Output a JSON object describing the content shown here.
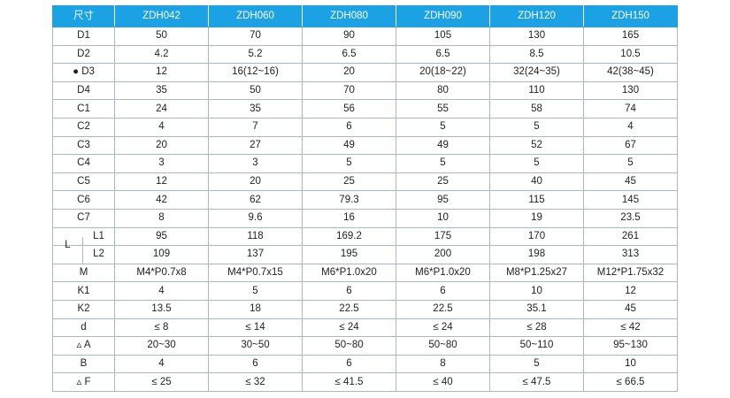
{
  "table": {
    "corner_label": "尺寸",
    "models": [
      "ZDH042",
      "ZDH060",
      "ZDH080",
      "ZDH090",
      "ZDH120",
      "ZDH150"
    ],
    "rows_top": [
      {
        "label": "D1",
        "values": [
          "50",
          "70",
          "90",
          "105",
          "130",
          "165"
        ]
      },
      {
        "label": "D2",
        "values": [
          "4.2",
          "5.2",
          "6.5",
          "6.5",
          "8.5",
          "10.5"
        ]
      },
      {
        "label": "● D3",
        "values": [
          "12",
          "16(12~16)",
          "20",
          "20(18~22)",
          "32(24~35)",
          "42(38~45)"
        ]
      },
      {
        "label": "D4",
        "values": [
          "35",
          "50",
          "70",
          "80",
          "110",
          "130"
        ]
      },
      {
        "label": "C1",
        "values": [
          "24",
          "35",
          "56",
          "55",
          "58",
          "74"
        ]
      },
      {
        "label": "C2",
        "values": [
          "4",
          "7",
          "6",
          "5",
          "5",
          "4"
        ]
      },
      {
        "label": "C3",
        "values": [
          "20",
          "27",
          "49",
          "49",
          "52",
          "67"
        ]
      },
      {
        "label": "C4",
        "values": [
          "3",
          "3",
          "5",
          "5",
          "5",
          "5"
        ]
      },
      {
        "label": "C5",
        "values": [
          "12",
          "20",
          "25",
          "25",
          "40",
          "45"
        ]
      },
      {
        "label": "C6",
        "values": [
          "42",
          "62",
          "79.3",
          "95",
          "115",
          "145"
        ]
      },
      {
        "label": "C7",
        "values": [
          "8",
          "9.6",
          "16",
          "10",
          "19",
          "23.5"
        ]
      }
    ],
    "group_L": {
      "label": "L",
      "rows": [
        {
          "label": "L1",
          "values": [
            "95",
            "118",
            "169.2",
            "175",
            "170",
            "261"
          ]
        },
        {
          "label": "L2",
          "values": [
            "109",
            "137",
            "195",
            "200",
            "198",
            "313"
          ]
        }
      ]
    },
    "rows_bottom": [
      {
        "label": "M",
        "values": [
          "M4*P0.7x8",
          "M4*P0.7x15",
          "M6*P1.0x20",
          "M6*P1.0x20",
          "M8*P1.25x27",
          "M12*P1.75x32"
        ]
      },
      {
        "label": "K1",
        "values": [
          "4",
          "5",
          "6",
          "6",
          "10",
          "12"
        ]
      },
      {
        "label": "K2",
        "values": [
          "13.5",
          "18",
          "22.5",
          "22.5",
          "35.1",
          "45"
        ]
      },
      {
        "label": "d",
        "values": [
          "≤ 8",
          "≤ 14",
          "≤ 24",
          "≤ 24",
          "≤ 28",
          "≤ 42"
        ]
      },
      {
        "label": "▵ A",
        "values": [
          "20~30",
          "30~50",
          "50~80",
          "50~80",
          "50~110",
          "95~130"
        ]
      },
      {
        "label": "B",
        "values": [
          "4",
          "6",
          "6",
          "8",
          "5",
          "10"
        ]
      },
      {
        "label": "▵ F",
        "values": [
          "≤ 25",
          "≤ 32",
          "≤ 41.5",
          "≤ 40",
          "≤ 47.5",
          "≤ 66.5"
        ]
      }
    ]
  }
}
